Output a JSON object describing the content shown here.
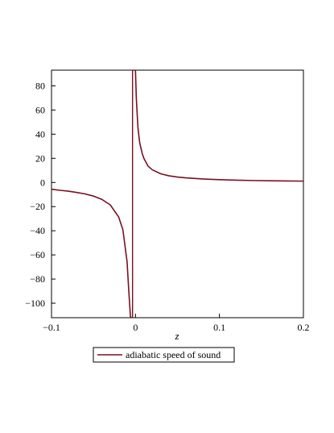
{
  "chart_data": {
    "type": "line",
    "xlabel": "z",
    "ylabel": "",
    "xlim": [
      -0.1,
      0.2
    ],
    "ylim": [
      -112,
      93
    ],
    "x_ticks": [
      -0.1,
      0,
      0.1,
      0.2
    ],
    "x_tick_labels": [
      "−0.1",
      "0",
      "0.1",
      "0.2"
    ],
    "y_ticks": [
      80,
      60,
      40,
      20,
      0,
      -20,
      -40,
      -60,
      -80,
      -100
    ],
    "y_tick_labels": [
      "80",
      "60",
      "40",
      "20",
      "0",
      "−20",
      "−40",
      "−60",
      "−80",
      "−100"
    ],
    "grid": false,
    "legend_position": "bottom",
    "vertical_asymptote_x": -0.0035,
    "series": [
      {
        "name": "adiabatic speed of sound",
        "color": "#7a1020",
        "branches": [
          {
            "x": [
              -0.1,
              -0.09,
              -0.08,
              -0.07,
              -0.06,
              -0.05,
              -0.04,
              -0.03,
              -0.02,
              -0.015,
              -0.01,
              -0.008,
              -0.006,
              -0.005,
              -0.0045
            ],
            "y": [
              -5.6,
              -6.5,
              -7.2,
              -8.3,
              -9.5,
              -11.3,
              -14.0,
              -18.6,
              -28.6,
              -39.1,
              -65.7,
              -89.5,
              -111.0,
              -112,
              -112
            ]
          },
          {
            "x": [
              -0.002,
              -0.001,
              0.0,
              0.001,
              0.002,
              0.003,
              0.005,
              0.008,
              0.01,
              0.015,
              0.02,
              0.03,
              0.04,
              0.05,
              0.06,
              0.08,
              0.1,
              0.12,
              0.14,
              0.16,
              0.18,
              0.2
            ],
            "y": [
              93,
              93,
              92.5,
              70.0,
              57.0,
              45.0,
              33.0,
              24.0,
              20.0,
              13.5,
              10.5,
              7.2,
              5.5,
              4.5,
              3.8,
              2.9,
              2.3,
              1.9,
              1.6,
              1.4,
              1.2,
              1.1
            ]
          }
        ]
      }
    ],
    "vertical_line": {
      "x": -0.0035,
      "y_from": -112,
      "y_to": 93
    }
  }
}
